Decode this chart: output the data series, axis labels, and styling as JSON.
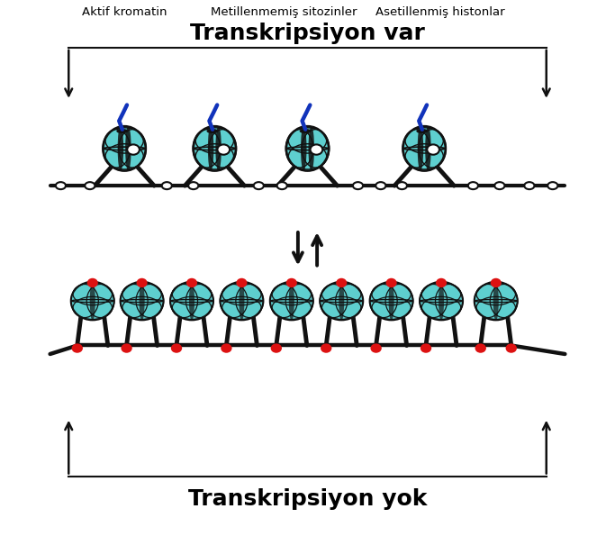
{
  "title_top": "Transkripsiyon var",
  "title_bottom": "Transkripsiyon yok",
  "label1": "Aktif kromatin",
  "label2": "Metillenmemiş sitozinler",
  "label3": "Asetillenmiş histonlar",
  "bg_color": "#ffffff",
  "nucleosome_color": "#5ecfcf",
  "nucleosome_color2": "#4bbfbf",
  "nucleosome_edge": "#111111",
  "dna_color": "#111111",
  "white_dot_color": "#ffffff",
  "red_dot_color": "#dd1111",
  "blue_tail_color": "#1133bb",
  "arrow_color": "#111111",
  "title_fontsize": 18,
  "label_fontsize": 9.5,
  "figsize": [
    6.83,
    5.95
  ]
}
